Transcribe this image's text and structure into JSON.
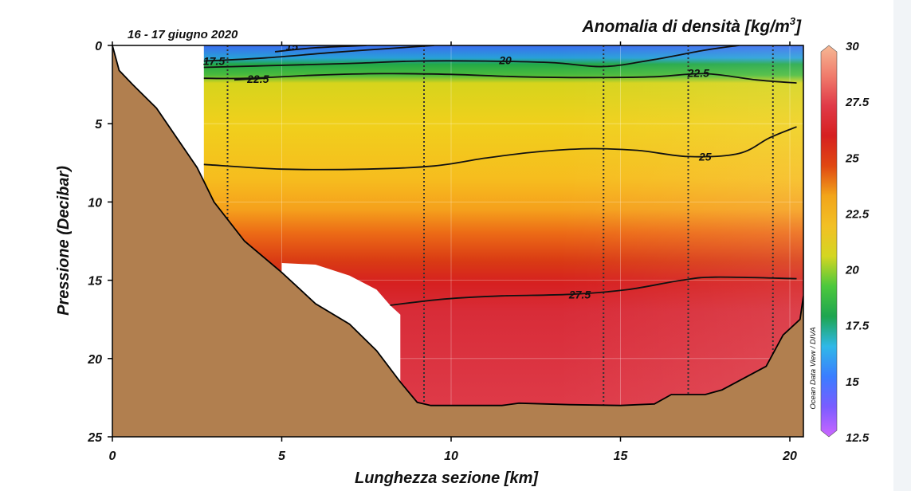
{
  "chart_data": {
    "type": "heatmap",
    "title": "Anomalia di densità [kg/m³]",
    "title_main": "Anomalia di densità [kg/m",
    "title_exp": "3",
    "title_end": "]",
    "subtitle": "16 - 17 giugno 2020",
    "xlabel": "Lunghezza sezione [km]",
    "ylabel": "Pressione (Decibar)",
    "credit": "Ocean Data View / DIVA",
    "xlim": [
      0,
      20.4
    ],
    "ylim": [
      25,
      0
    ],
    "xticks": [
      0,
      5,
      10,
      15,
      20
    ],
    "yticks": [
      0,
      5,
      10,
      15,
      20,
      25
    ],
    "colorbar": {
      "range": [
        12.5,
        30
      ],
      "ticks": [
        "30",
        "27.5",
        "25",
        "22.5",
        "20",
        "17.5",
        "15",
        "12.5"
      ],
      "colors": [
        "#cc66ff",
        "#7a5cff",
        "#3a7dff",
        "#2fb8e8",
        "#1ea550",
        "#4cc83c",
        "#d4d622",
        "#f2c025",
        "#f2a51a",
        "#e04812",
        "#d62020",
        "#e03a48",
        "#f07c6c",
        "#f6b894"
      ]
    },
    "contours": [
      {
        "level": "27.5",
        "points": [
          [
            8.2,
            16.6
          ],
          [
            9.8,
            16.2
          ],
          [
            11.5,
            16.0
          ],
          [
            13.5,
            15.9
          ],
          [
            15.2,
            15.6
          ],
          [
            16.8,
            15.0
          ],
          [
            17.8,
            14.8
          ],
          [
            20.2,
            14.9
          ]
        ],
        "label_at": [
          13.8,
          15.9
        ]
      },
      {
        "level": "25",
        "points": [
          [
            2.7,
            7.6
          ],
          [
            5.0,
            7.9
          ],
          [
            7.5,
            7.9
          ],
          [
            9.5,
            7.7
          ],
          [
            11.0,
            7.2
          ],
          [
            12.5,
            6.8
          ],
          [
            14.0,
            6.6
          ],
          [
            15.5,
            6.7
          ],
          [
            17.0,
            7.1
          ],
          [
            18.5,
            6.9
          ],
          [
            19.4,
            5.9
          ],
          [
            20.2,
            5.2
          ]
        ],
        "label_at": [
          17.5,
          7.1
        ]
      },
      {
        "level": "22.5",
        "points": [
          [
            2.7,
            2.1
          ],
          [
            4.0,
            2.1
          ],
          [
            6.0,
            1.9
          ],
          [
            8.0,
            1.8
          ],
          [
            10.0,
            1.85
          ],
          [
            12.0,
            2.0
          ],
          [
            14.0,
            2.05
          ],
          [
            16.0,
            2.0
          ],
          [
            17.5,
            1.8
          ],
          [
            19.0,
            2.2
          ],
          [
            20.2,
            2.4
          ]
        ],
        "label_at": [
          17.3,
          1.75
        ]
      },
      {
        "level": "22.5",
        "points": [
          [
            3.6,
            2.2
          ],
          [
            4.5,
            2.1
          ]
        ],
        "label_at": [
          4.3,
          2.15
        ]
      },
      {
        "level": "20",
        "points": [
          [
            2.7,
            1.4
          ],
          [
            4.5,
            1.3
          ],
          [
            7.0,
            1.15
          ],
          [
            9.0,
            1.0
          ],
          [
            11.0,
            1.0
          ],
          [
            13.0,
            1.1
          ],
          [
            14.5,
            1.35
          ],
          [
            16.0,
            0.9
          ],
          [
            17.5,
            0.3
          ],
          [
            18.5,
            0.0
          ]
        ],
        "label_at": [
          11.6,
          0.95
        ]
      },
      {
        "level": "17.5",
        "points": [
          [
            2.7,
            1.0
          ],
          [
            4.5,
            0.8
          ],
          [
            6.5,
            0.45
          ],
          [
            8.5,
            0.15
          ],
          [
            9.5,
            0.0
          ]
        ],
        "label_at": [
          3.0,
          1.0
        ]
      },
      {
        "level": "15",
        "points": [
          [
            4.8,
            0.4
          ],
          [
            6.0,
            0.15
          ],
          [
            7.5,
            0.0
          ]
        ],
        "label_at": [
          5.3,
          0.05
        ]
      }
    ],
    "stations_km": [
      3.4,
      9.2,
      14.5,
      17.0,
      19.5
    ],
    "bottom_profile": [
      [
        0,
        0
      ],
      [
        0.2,
        1.6
      ],
      [
        0.6,
        2.5
      ],
      [
        1.3,
        4.0
      ],
      [
        2.5,
        7.8
      ],
      [
        3.0,
        10.0
      ],
      [
        3.9,
        12.5
      ],
      [
        5.0,
        14.5
      ],
      [
        6.0,
        16.5
      ],
      [
        7.0,
        17.8
      ],
      [
        7.8,
        19.5
      ],
      [
        8.5,
        21.5
      ],
      [
        9.0,
        22.8
      ],
      [
        9.4,
        23.0
      ],
      [
        11.5,
        23.0
      ],
      [
        12.0,
        22.85
      ],
      [
        13.5,
        22.95
      ],
      [
        15.0,
        23.0
      ],
      [
        16.0,
        22.9
      ],
      [
        16.5,
        22.3
      ],
      [
        17.5,
        22.3
      ],
      [
        18.0,
        22.0
      ],
      [
        19.3,
        20.5
      ],
      [
        19.8,
        18.5
      ],
      [
        20.3,
        17.5
      ],
      [
        20.4,
        16.0
      ],
      [
        20.4,
        0
      ]
    ],
    "data_gap": [
      [
        2.7,
        0
      ],
      [
        2.7,
        10.0
      ],
      [
        3.0,
        10.0
      ],
      [
        3.9,
        12.5
      ],
      [
        5.0,
        13.9
      ],
      [
        6.0,
        14.0
      ],
      [
        7.0,
        14.7
      ],
      [
        7.8,
        15.6
      ],
      [
        8.2,
        16.6
      ],
      [
        8.5,
        17.2
      ],
      [
        8.4,
        20.5
      ],
      [
        8.7,
        22.0
      ],
      [
        8.0,
        19.0
      ],
      [
        7.0,
        17.6
      ],
      [
        6.0,
        16.4
      ],
      [
        5.0,
        14.5
      ],
      [
        3.9,
        12.5
      ],
      [
        3.0,
        10.0
      ],
      [
        2.5,
        7.8
      ],
      [
        1.3,
        4.0
      ],
      [
        0.6,
        2.5
      ],
      [
        0.2,
        1.6
      ],
      [
        0,
        0
      ]
    ],
    "data_gap_corner": [
      [
        0,
        0
      ],
      [
        2.7,
        0
      ],
      [
        2.7,
        10.0
      ],
      [
        3.0,
        10.0
      ],
      [
        2.5,
        7.8
      ],
      [
        1.3,
        4.0
      ],
      [
        0.6,
        2.5
      ],
      [
        0.2,
        1.6
      ]
    ],
    "data_gap_notch": [
      [
        5.0,
        14.55
      ],
      [
        5.0,
        13.9
      ],
      [
        6.0,
        14.0
      ],
      [
        7.0,
        14.7
      ],
      [
        7.8,
        15.6
      ],
      [
        8.2,
        16.6
      ],
      [
        8.5,
        17.2
      ],
      [
        8.5,
        21.6
      ],
      [
        7.8,
        19.5
      ],
      [
        7.0,
        17.8
      ],
      [
        6.0,
        16.5
      ]
    ],
    "density_bands": [
      {
        "depth": 0.0,
        "color": "#3b6cf0"
      },
      {
        "depth": 0.8,
        "color": "#28a0d8"
      },
      {
        "depth": 1.2,
        "color": "#22a848"
      },
      {
        "depth": 1.9,
        "color": "#4cbc3c"
      },
      {
        "depth": 2.4,
        "color": "#d6d41c"
      },
      {
        "depth": 5.0,
        "color": "#f0d01c"
      },
      {
        "depth": 8.5,
        "color": "#f6bd1e"
      },
      {
        "depth": 10.5,
        "color": "#f5a01c"
      },
      {
        "depth": 12.0,
        "color": "#ec6a16"
      },
      {
        "depth": 13.8,
        "color": "#d93a14"
      },
      {
        "depth": 15.2,
        "color": "#d62020"
      },
      {
        "depth": 17.0,
        "color": "#d82c38"
      },
      {
        "depth": 23.0,
        "color": "#de3a48"
      }
    ]
  }
}
